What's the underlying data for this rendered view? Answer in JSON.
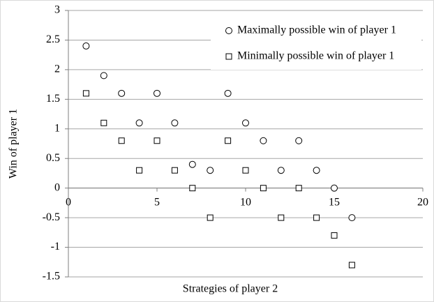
{
  "chart_data": {
    "type": "scatter",
    "x_label": "Strategies of player 2",
    "y_label": "Win of player 1",
    "x": [
      1,
      2,
      3,
      4,
      5,
      6,
      7,
      8,
      9,
      10,
      11,
      12,
      13,
      14,
      15,
      16
    ],
    "series": [
      {
        "name": "Maximally possible win of player 1",
        "color": "#000000",
        "marker": "circle",
        "values": [
          2.4,
          1.9,
          1.6,
          1.1,
          1.6,
          1.1,
          0.4,
          0.3,
          1.6,
          1.1,
          0.8,
          0.3,
          0.8,
          0.3,
          0,
          -0.5
        ]
      },
      {
        "name": "Minimally possible win of player 1",
        "color": "#000000",
        "marker": "square",
        "values": [
          1.6,
          1.1,
          0.8,
          0.3,
          0.8,
          0.3,
          0,
          -0.5,
          0.8,
          0.3,
          0,
          -0.5,
          0,
          -0.5,
          -0.8,
          -1.3
        ]
      }
    ],
    "xlim": [
      0,
      20
    ],
    "xticks": [
      0,
      5,
      10,
      15,
      20
    ],
    "ylim": [
      -1.5,
      3
    ],
    "yticks": [
      -1.5,
      -1,
      -0.5,
      0,
      0.5,
      1,
      1.5,
      2,
      2.5,
      3
    ],
    "grid": true,
    "legend": "top-right"
  }
}
